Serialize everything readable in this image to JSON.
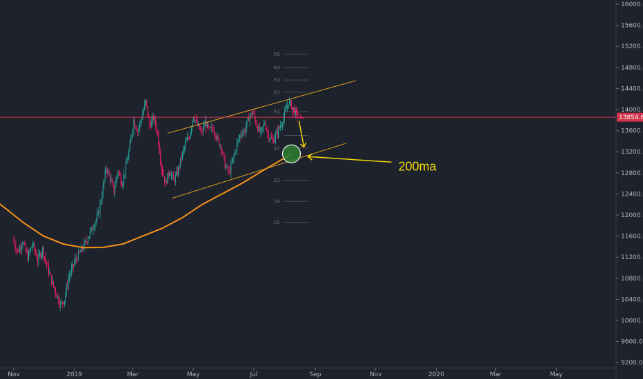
{
  "chart_data": {
    "type": "candlestick",
    "y_axis": {
      "ticks": [
        9200,
        9600,
        10000,
        10400,
        10800,
        11200,
        11600,
        12000,
        12400,
        12800,
        13200,
        13600,
        14000,
        14400,
        14800,
        15200,
        15600,
        16000
      ],
      "tick_labels": [
        "9200.0",
        "9600.0",
        "10000.0",
        "10400.0",
        "10800.0",
        "11200.0",
        "11600.0",
        "12000.0",
        "12400.0",
        "12800.0",
        "13200.0",
        "13600.0",
        "14000.0",
        "14400.0",
        "14800.0",
        "15200.0",
        "15600.0",
        "16000.0"
      ],
      "ylim": [
        9150,
        16070
      ],
      "position": "right"
    },
    "x_axis": {
      "tick_labels": [
        "Nov",
        "2019",
        "Mar",
        "May",
        "Jul",
        "Sep",
        "Nov",
        "2020",
        "Mar",
        "May"
      ],
      "tick_days": [
        0,
        61,
        120,
        181,
        242,
        304,
        365,
        426,
        486,
        547
      ]
    },
    "last_price": 13854.6,
    "last_price_label": "13854.6",
    "colors": {
      "background": "#1e222d",
      "up": "#26a69a",
      "down": "#e91e63",
      "ma": "#f7931a",
      "channel": "#e3a21a",
      "resistance": "#d0344a",
      "annotation": "#f5d90a",
      "target_fill": "#2e7d32"
    },
    "candle_anchors": [
      [
        0,
        11550
      ],
      [
        5,
        11300
      ],
      [
        10,
        11500
      ],
      [
        15,
        11200
      ],
      [
        20,
        11450
      ],
      [
        25,
        11150
      ],
      [
        30,
        11350
      ],
      [
        35,
        11000
      ],
      [
        40,
        10700
      ],
      [
        45,
        10450
      ],
      [
        48,
        10300
      ],
      [
        52,
        10400
      ],
      [
        56,
        10800
      ],
      [
        62,
        11100
      ],
      [
        68,
        11300
      ],
      [
        74,
        11500
      ],
      [
        80,
        11750
      ],
      [
        86,
        12000
      ],
      [
        90,
        12400
      ],
      [
        94,
        12900
      ],
      [
        98,
        12700
      ],
      [
        102,
        12450
      ],
      [
        106,
        12850
      ],
      [
        110,
        12600
      ],
      [
        114,
        12900
      ],
      [
        118,
        13300
      ],
      [
        122,
        13800
      ],
      [
        126,
        13600
      ],
      [
        130,
        13850
      ],
      [
        134,
        14150
      ],
      [
        138,
        13700
      ],
      [
        142,
        13850
      ],
      [
        146,
        13550
      ],
      [
        150,
        12900
      ],
      [
        154,
        12600
      ],
      [
        158,
        12850
      ],
      [
        162,
        12650
      ],
      [
        166,
        12800
      ],
      [
        170,
        13100
      ],
      [
        174,
        13350
      ],
      [
        178,
        13500
      ],
      [
        182,
        13900
      ],
      [
        186,
        13700
      ],
      [
        190,
        13550
      ],
      [
        194,
        13750
      ],
      [
        198,
        13600
      ],
      [
        202,
        13650
      ],
      [
        206,
        13450
      ],
      [
        210,
        13300
      ],
      [
        214,
        12950
      ],
      [
        218,
        12800
      ],
      [
        222,
        13050
      ],
      [
        226,
        13350
      ],
      [
        230,
        13550
      ],
      [
        234,
        13600
      ],
      [
        238,
        13850
      ],
      [
        242,
        13950
      ],
      [
        246,
        13700
      ],
      [
        250,
        13550
      ],
      [
        254,
        13750
      ],
      [
        258,
        13500
      ],
      [
        262,
        13400
      ],
      [
        266,
        13550
      ],
      [
        270,
        13700
      ],
      [
        274,
        13900
      ],
      [
        278,
        14150
      ],
      [
        282,
        14050
      ],
      [
        286,
        13900
      ]
    ],
    "ma_points": [
      [
        -25,
        12360
      ],
      [
        -10,
        12150
      ],
      [
        10,
        11850
      ],
      [
        30,
        11600
      ],
      [
        50,
        11450
      ],
      [
        70,
        11380
      ],
      [
        90,
        11385
      ],
      [
        110,
        11450
      ],
      [
        130,
        11600
      ],
      [
        150,
        11750
      ],
      [
        170,
        11950
      ],
      [
        190,
        12200
      ],
      [
        210,
        12400
      ],
      [
        230,
        12600
      ],
      [
        250,
        12830
      ],
      [
        270,
        13050
      ],
      [
        280,
        13150
      ]
    ],
    "channel_upper": [
      [
        155,
        13550
      ],
      [
        345,
        14550
      ]
    ],
    "channel_lower": [
      [
        160,
        12320
      ],
      [
        335,
        13360
      ]
    ],
    "resistance_level": 13854.6,
    "pivot_levels": [
      {
        "label": "R5",
        "value": 15050
      },
      {
        "label": "R4",
        "value": 14800
      },
      {
        "label": "R3",
        "value": 14560
      },
      {
        "label": "R2",
        "value": 14330
      },
      {
        "label": "R1",
        "value": 13960
      },
      {
        "label": "S1",
        "value": 13510
      },
      {
        "label": "S2",
        "value": 13270
      },
      {
        "label": "S3",
        "value": 12660
      },
      {
        "label": "S4",
        "value": 12260
      },
      {
        "label": "S5",
        "value": 11860
      }
    ],
    "pivot_range_days": [
      262,
      297
    ],
    "target_circle": {
      "day": 280,
      "value": 13160
    },
    "annotation_text": "200ma"
  }
}
